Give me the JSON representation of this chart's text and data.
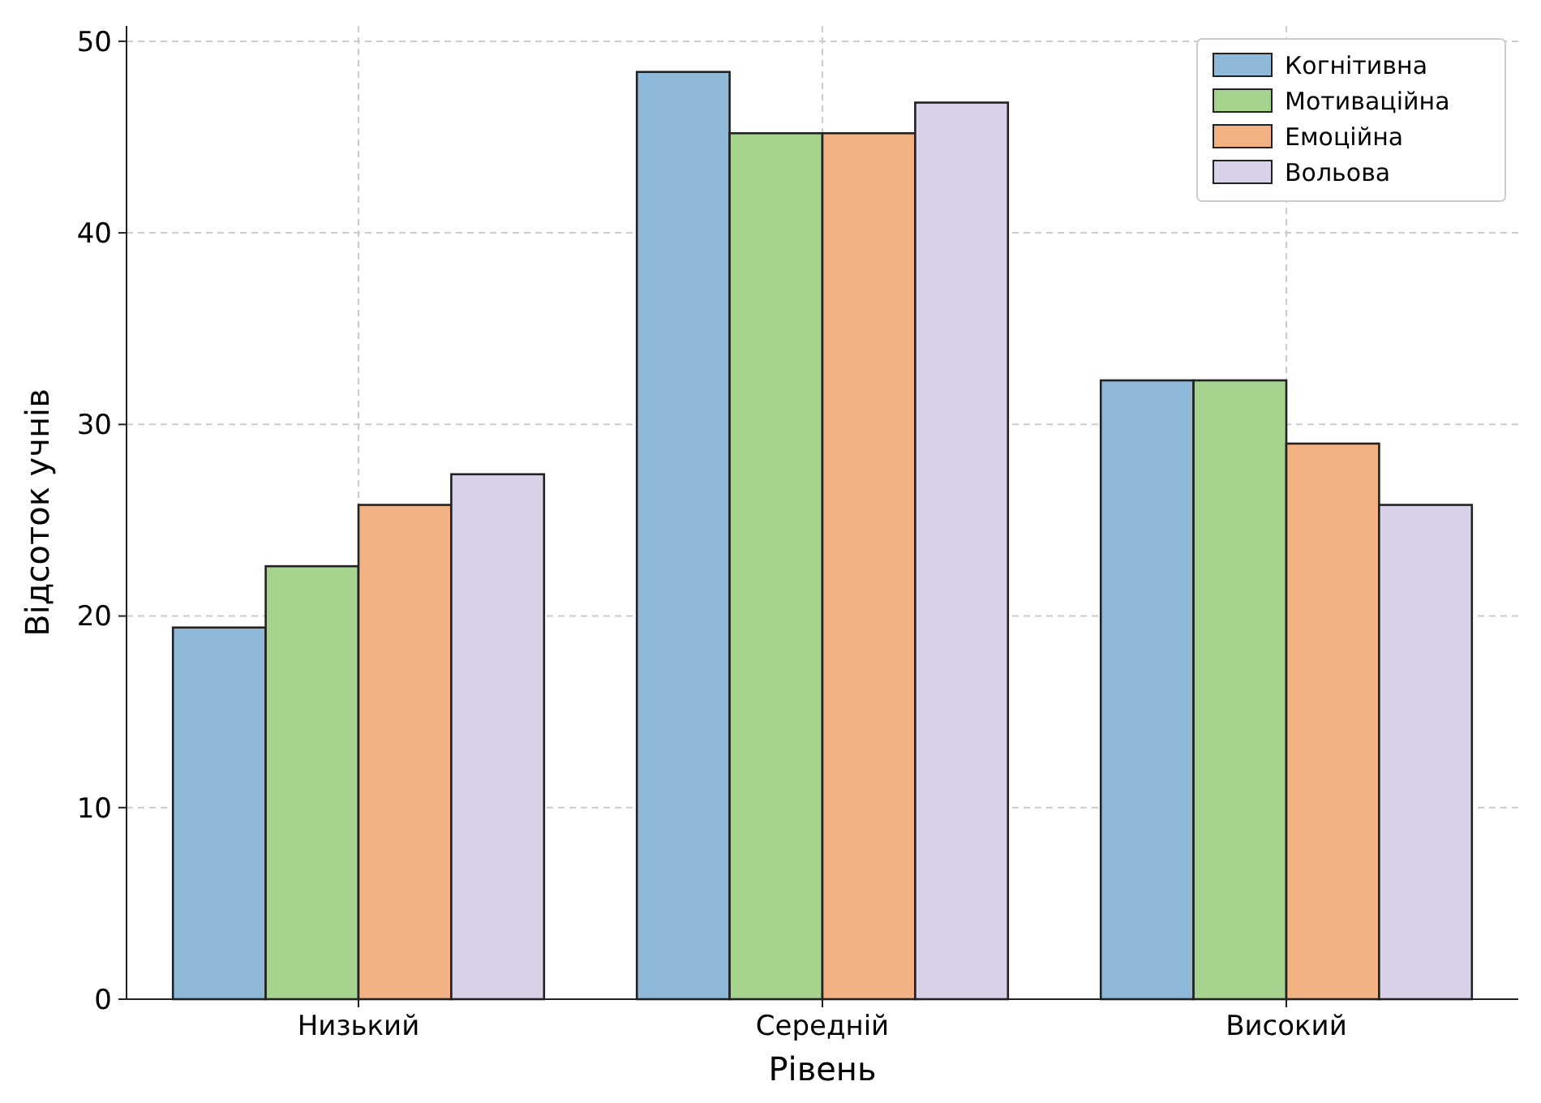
{
  "chart_data": {
    "type": "bar",
    "xlabel": "Рівень",
    "ylabel": "Відсоток учнів",
    "categories": [
      "Низький",
      "Середній",
      "Високий"
    ],
    "series": [
      {
        "name": "Когнітивна",
        "color": "#8fb9d8",
        "values": [
          19.4,
          48.4,
          32.3
        ]
      },
      {
        "name": "Мотиваційна",
        "color": "#a6d38e",
        "values": [
          22.6,
          45.2,
          32.3
        ]
      },
      {
        "name": "Емоційна",
        "color": "#f3b283",
        "values": [
          25.8,
          45.2,
          29.0
        ]
      },
      {
        "name": "Вольова",
        "color": "#d9d1e8",
        "values": [
          27.4,
          46.8,
          25.8
        ]
      }
    ],
    "ylim": [
      0,
      50.8
    ],
    "yticks": [
      0,
      10,
      20,
      30,
      40,
      50
    ],
    "grid": true,
    "legend": "top right"
  }
}
